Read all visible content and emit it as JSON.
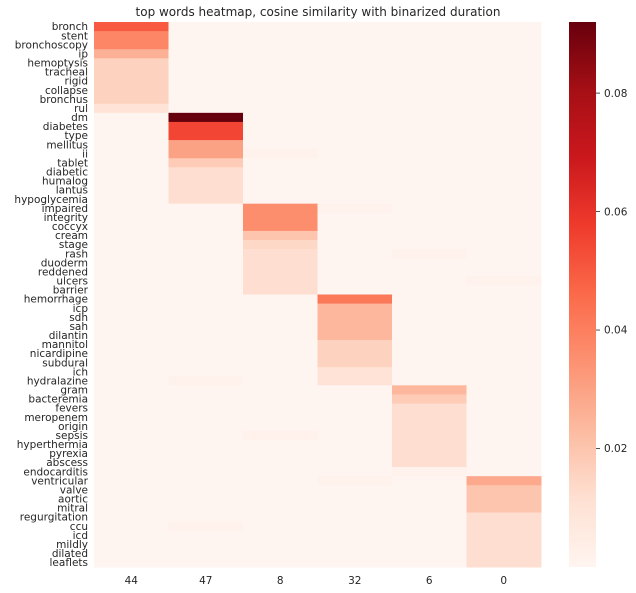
{
  "chart_data": {
    "type": "heatmap",
    "title": "top words heatmap, cosine similarity with binarized duration",
    "columns": [
      "44",
      "47",
      "8",
      "32",
      "6",
      "0"
    ],
    "rows": [
      "bronch",
      "stent",
      "bronchoscopy",
      "ip",
      "hemoptysis",
      "tracheal",
      "rigid",
      "collapse",
      "bronchus",
      "rul",
      "dm",
      "diabetes",
      "type",
      "mellitus",
      "ii",
      "tablet",
      "diabetic",
      "humalog",
      "lantus",
      "hypoglycemia",
      "impaired",
      "integrity",
      "coccyx",
      "cream",
      "stage",
      "rash",
      "duoderm",
      "reddened",
      "ulcers",
      "barrier",
      "hemorrhage",
      "icp",
      "sdh",
      "sah",
      "dilantin",
      "mannitol",
      "nicardipine",
      "subdural",
      "ich",
      "hydralazine",
      "gram",
      "bacteremia",
      "fevers",
      "meropenem",
      "origin",
      "sepsis",
      "hyperthermia",
      "pyrexia",
      "abscess",
      "endocarditis",
      "ventricular",
      "valve",
      "aortic",
      "mitral",
      "regurgitation",
      "ccu",
      "icd",
      "mildly",
      "dilated",
      "leaflets"
    ],
    "values": [
      [
        0.05,
        0,
        0,
        0,
        0,
        0
      ],
      [
        0.038,
        0,
        0,
        0,
        0,
        0
      ],
      [
        0.038,
        0,
        0,
        0,
        0,
        0
      ],
      [
        0.026,
        0,
        0,
        0,
        0,
        0
      ],
      [
        0.016,
        0,
        0,
        0,
        0,
        0
      ],
      [
        0.016,
        0,
        0,
        0,
        0,
        0
      ],
      [
        0.016,
        0,
        0,
        0,
        0,
        0
      ],
      [
        0.016,
        0,
        0,
        0,
        0,
        0
      ],
      [
        0.016,
        0,
        0,
        0,
        0,
        0
      ],
      [
        0.01,
        0,
        0,
        0,
        0,
        0
      ],
      [
        0,
        0.092,
        0,
        0,
        0,
        0
      ],
      [
        0,
        0.055,
        0,
        0,
        0,
        0
      ],
      [
        0,
        0.055,
        0,
        0,
        0,
        0
      ],
      [
        0,
        0.03,
        0,
        0,
        0,
        0
      ],
      [
        0,
        0.03,
        0.002,
        0,
        0,
        0
      ],
      [
        0,
        0.018,
        0,
        0,
        0,
        0
      ],
      [
        0,
        0.012,
        0,
        0,
        0,
        0
      ],
      [
        0,
        0.012,
        0,
        0,
        0,
        0
      ],
      [
        0,
        0.012,
        0,
        0,
        0,
        0
      ],
      [
        0,
        0.012,
        0,
        0,
        0,
        0
      ],
      [
        0,
        0,
        0.036,
        0.002,
        0,
        0
      ],
      [
        0,
        0,
        0.036,
        0,
        0,
        0
      ],
      [
        0,
        0,
        0.036,
        0,
        0,
        0
      ],
      [
        0,
        0,
        0.02,
        0,
        0,
        0
      ],
      [
        0,
        0,
        0.014,
        0,
        0,
        0
      ],
      [
        0,
        0,
        0.012,
        0,
        0.002,
        0
      ],
      [
        0,
        0,
        0.012,
        0,
        0,
        0
      ],
      [
        0,
        0,
        0.012,
        0,
        0,
        0
      ],
      [
        0,
        0,
        0.012,
        0,
        0,
        0.002
      ],
      [
        0,
        0,
        0.012,
        0,
        0,
        0
      ],
      [
        0,
        0,
        0,
        0.042,
        0,
        0
      ],
      [
        0,
        0,
        0,
        0.024,
        0,
        0
      ],
      [
        0,
        0,
        0,
        0.024,
        0,
        0
      ],
      [
        0,
        0,
        0,
        0.024,
        0,
        0
      ],
      [
        0,
        0,
        0,
        0.024,
        0,
        0
      ],
      [
        0,
        0,
        0,
        0.016,
        0,
        0
      ],
      [
        0,
        0,
        0,
        0.016,
        0,
        0
      ],
      [
        0,
        0,
        0,
        0.016,
        0,
        0
      ],
      [
        0,
        0,
        0,
        0.01,
        0,
        0
      ],
      [
        0,
        0.002,
        0,
        0.01,
        0,
        0
      ],
      [
        0,
        0,
        0,
        0,
        0.024,
        0
      ],
      [
        0,
        0,
        0,
        0,
        0.018,
        0
      ],
      [
        0,
        0,
        0,
        0,
        0.012,
        0
      ],
      [
        0,
        0,
        0,
        0,
        0.012,
        0
      ],
      [
        0,
        0,
        0,
        0,
        0.012,
        0
      ],
      [
        0,
        0,
        0.002,
        0,
        0.012,
        0
      ],
      [
        0,
        0,
        0,
        0,
        0.012,
        0
      ],
      [
        0,
        0,
        0,
        0,
        0.012,
        0
      ],
      [
        0,
        0,
        0,
        0,
        0.012,
        0
      ],
      [
        0,
        0,
        0,
        0,
        0.002,
        0
      ],
      [
        0,
        0,
        0,
        0.002,
        0,
        0.028
      ],
      [
        0,
        0,
        0,
        0,
        0,
        0.02
      ],
      [
        0,
        0,
        0,
        0,
        0,
        0.02
      ],
      [
        0,
        0,
        0,
        0,
        0,
        0.02
      ],
      [
        0,
        0,
        0,
        0,
        0,
        0.012
      ],
      [
        0,
        0.002,
        0,
        0,
        0,
        0.012
      ],
      [
        0,
        0,
        0,
        0,
        0,
        0.012
      ],
      [
        0,
        0,
        0,
        0,
        0,
        0.012
      ],
      [
        0,
        0,
        0,
        0,
        0,
        0.012
      ],
      [
        0,
        0,
        0,
        0,
        0,
        0.012
      ]
    ],
    "vmin": 0,
    "vmax": 0.092,
    "colorbar_ticks": [
      0.02,
      0.04,
      0.06,
      0.08
    ],
    "colorbar_tick_labels": [
      "0.02",
      "0.04",
      "0.06",
      "0.08"
    ],
    "colormap": "Reds",
    "colormap_stops": [
      "#fff5f0",
      "#fee0d2",
      "#fcbba1",
      "#fc9272",
      "#fb6a4a",
      "#ef3b2c",
      "#cb181d",
      "#a50f15",
      "#67000d"
    ]
  }
}
